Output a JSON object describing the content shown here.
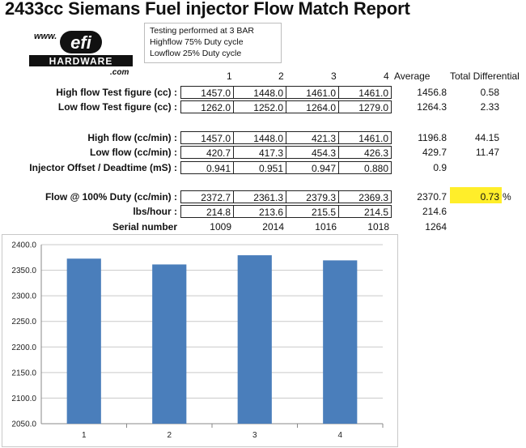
{
  "title": "2433cc Siemans Fuel injector Flow Match Report",
  "logo": {
    "www": "www.",
    "efi": "efi",
    "hardware": "HARDWARE",
    "com": ".com"
  },
  "notes": [
    "Testing performed at 3 BAR",
    "Highflow 75% Duty cycle",
    "Lowflow 25% Duty cycle"
  ],
  "headers": {
    "cols": [
      "1",
      "2",
      "3",
      "4"
    ],
    "average": "Average",
    "total_diff": "Total Differential"
  },
  "rows": {
    "hft": {
      "label": "High flow Test figure (cc) :",
      "values": [
        "1457.0",
        "1448.0",
        "1461.0",
        "1461.0"
      ],
      "average": "1456.8",
      "diff": "0.58"
    },
    "lft": {
      "label": "Low flow Test figure (cc) :",
      "values": [
        "1262.0",
        "1252.0",
        "1264.0",
        "1279.0"
      ],
      "average": "1264.3",
      "diff": "2.33"
    },
    "hf": {
      "label": "High flow  (cc/min) :",
      "values": [
        "1457.0",
        "1448.0",
        "421.3",
        "1461.0"
      ],
      "average": "1196.8",
      "diff": "44.15"
    },
    "lf": {
      "label": "Low flow (cc/min) :",
      "values": [
        "420.7",
        "417.3",
        "454.3",
        "426.3"
      ],
      "average": "429.7",
      "diff": "11.47"
    },
    "io": {
      "label": "Injector Offset / Deadtime (mS) :",
      "values": [
        "0.941",
        "0.951",
        "0.947",
        "0.880"
      ],
      "average": "0.9"
    },
    "f100": {
      "label": "Flow @ 100% Duty (cc/min) :",
      "values": [
        "2372.7",
        "2361.3",
        "2379.3",
        "2369.3"
      ],
      "average": "2370.7",
      "diff": "0.73",
      "unit": "%"
    },
    "lbs": {
      "label": "lbs/hour :",
      "values": [
        "214.8",
        "213.6",
        "215.5",
        "214.5"
      ],
      "average": "214.6"
    },
    "sn": {
      "label": "Serial number",
      "values": [
        "1009",
        "2014",
        "1016",
        "1018"
      ],
      "average": "1264"
    }
  },
  "colors": {
    "bar": "#4a7ebb",
    "highlight": "#ffee2a"
  },
  "chart_data": {
    "type": "bar",
    "categories": [
      "1",
      "2",
      "3",
      "4"
    ],
    "values": [
      2372.7,
      2361.3,
      2379.3,
      2369.3
    ],
    "ylim": [
      2050,
      2400
    ],
    "yticks": [
      "2050.0",
      "2100.0",
      "2150.0",
      "2200.0",
      "2250.0",
      "2300.0",
      "2350.0",
      "2400.0"
    ],
    "grid": true,
    "legend": "none"
  }
}
